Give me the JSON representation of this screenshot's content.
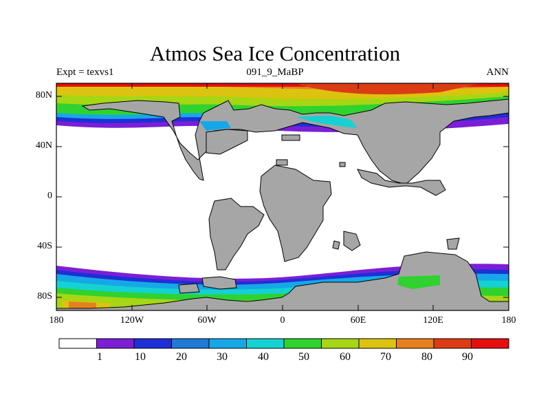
{
  "header": {
    "title": "Atmos Sea Ice Concentration",
    "left": "Expt = texvs1",
    "center": "091_9_MaBP",
    "right": "ANN"
  },
  "map": {
    "lat_ticks": [
      "80N",
      "40N",
      "0",
      "40S",
      "80S"
    ],
    "lon_ticks": [
      "180",
      "120W",
      "60W",
      "0",
      "60E",
      "120E",
      "180"
    ],
    "land_color": "#a6a6a6",
    "ocean_color": "#ffffff"
  },
  "colorbar": {
    "labels": [
      "1",
      "10",
      "20",
      "30",
      "40",
      "50",
      "60",
      "70",
      "80",
      "90"
    ],
    "colors": [
      "#ffffff",
      "#7b1fd6",
      "#1f2fd6",
      "#1f7ad6",
      "#16a8e6",
      "#14d2d2",
      "#2fd22f",
      "#a6d614",
      "#dcc30f",
      "#e6801f",
      "#dc3c14",
      "#e60f0f"
    ]
  }
}
